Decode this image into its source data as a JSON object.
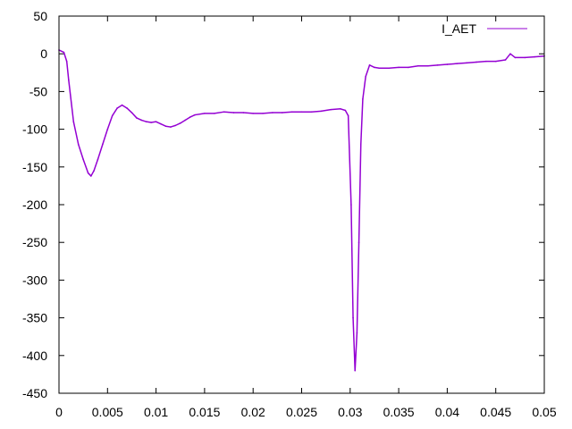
{
  "chart_data": {
    "type": "line",
    "title": "",
    "xlabel": "",
    "ylabel": "",
    "xlim": [
      0,
      0.05
    ],
    "ylim": [
      -450,
      50
    ],
    "xticks": [
      0,
      0.005,
      0.01,
      0.015,
      0.02,
      0.025,
      0.03,
      0.035,
      0.04,
      0.045,
      0.05
    ],
    "xtick_labels": [
      "0",
      "0.005",
      "0.01",
      "0.015",
      "0.02",
      "0.025",
      "0.03",
      "0.035",
      "0.04",
      "0.045",
      "0.05"
    ],
    "yticks": [
      50,
      0,
      -50,
      -100,
      -150,
      -200,
      -250,
      -300,
      -350,
      -400,
      -450
    ],
    "ytick_labels": [
      "50",
      "0",
      "-50",
      "-100",
      "-150",
      "-200",
      "-250",
      "-300",
      "-350",
      "-400",
      "-450"
    ],
    "grid": false,
    "legend_position": "top-right",
    "series": [
      {
        "name": "I_AET",
        "color": "#9400d3",
        "x": [
          0,
          0.0005,
          0.0008,
          0.001,
          0.0015,
          0.002,
          0.0025,
          0.003,
          0.0033,
          0.0036,
          0.004,
          0.0045,
          0.005,
          0.0055,
          0.006,
          0.0065,
          0.007,
          0.0075,
          0.008,
          0.0085,
          0.009,
          0.0095,
          0.01,
          0.0105,
          0.011,
          0.0115,
          0.012,
          0.0125,
          0.013,
          0.0135,
          0.014,
          0.015,
          0.016,
          0.017,
          0.018,
          0.019,
          0.02,
          0.021,
          0.022,
          0.023,
          0.024,
          0.025,
          0.026,
          0.027,
          0.028,
          0.029,
          0.0295,
          0.0298,
          0.0301,
          0.0303,
          0.0305,
          0.0307,
          0.0309,
          0.0311,
          0.0313,
          0.0316,
          0.032,
          0.0325,
          0.033,
          0.034,
          0.035,
          0.036,
          0.037,
          0.038,
          0.039,
          0.04,
          0.041,
          0.042,
          0.043,
          0.044,
          0.045,
          0.046,
          0.0465,
          0.047,
          0.048,
          0.049,
          0.05
        ],
        "y": [
          5,
          2,
          -10,
          -35,
          -90,
          -120,
          -140,
          -158,
          -162,
          -155,
          -140,
          -120,
          -100,
          -82,
          -72,
          -68,
          -72,
          -78,
          -85,
          -88,
          -90,
          -91,
          -90,
          -93,
          -96,
          -97,
          -95,
          -92,
          -88,
          -84,
          -81,
          -79,
          -79,
          -77,
          -78,
          -78,
          -79,
          -79,
          -78,
          -78,
          -77,
          -77,
          -77,
          -76,
          -74,
          -73,
          -75,
          -82,
          -200,
          -350,
          -420,
          -370,
          -250,
          -120,
          -60,
          -30,
          -15,
          -18,
          -19,
          -19,
          -18,
          -18,
          -16,
          -16,
          -15,
          -14,
          -13,
          -12,
          -11,
          -10,
          -10,
          -8,
          0,
          -5,
          -5,
          -4,
          -3
        ]
      }
    ]
  }
}
